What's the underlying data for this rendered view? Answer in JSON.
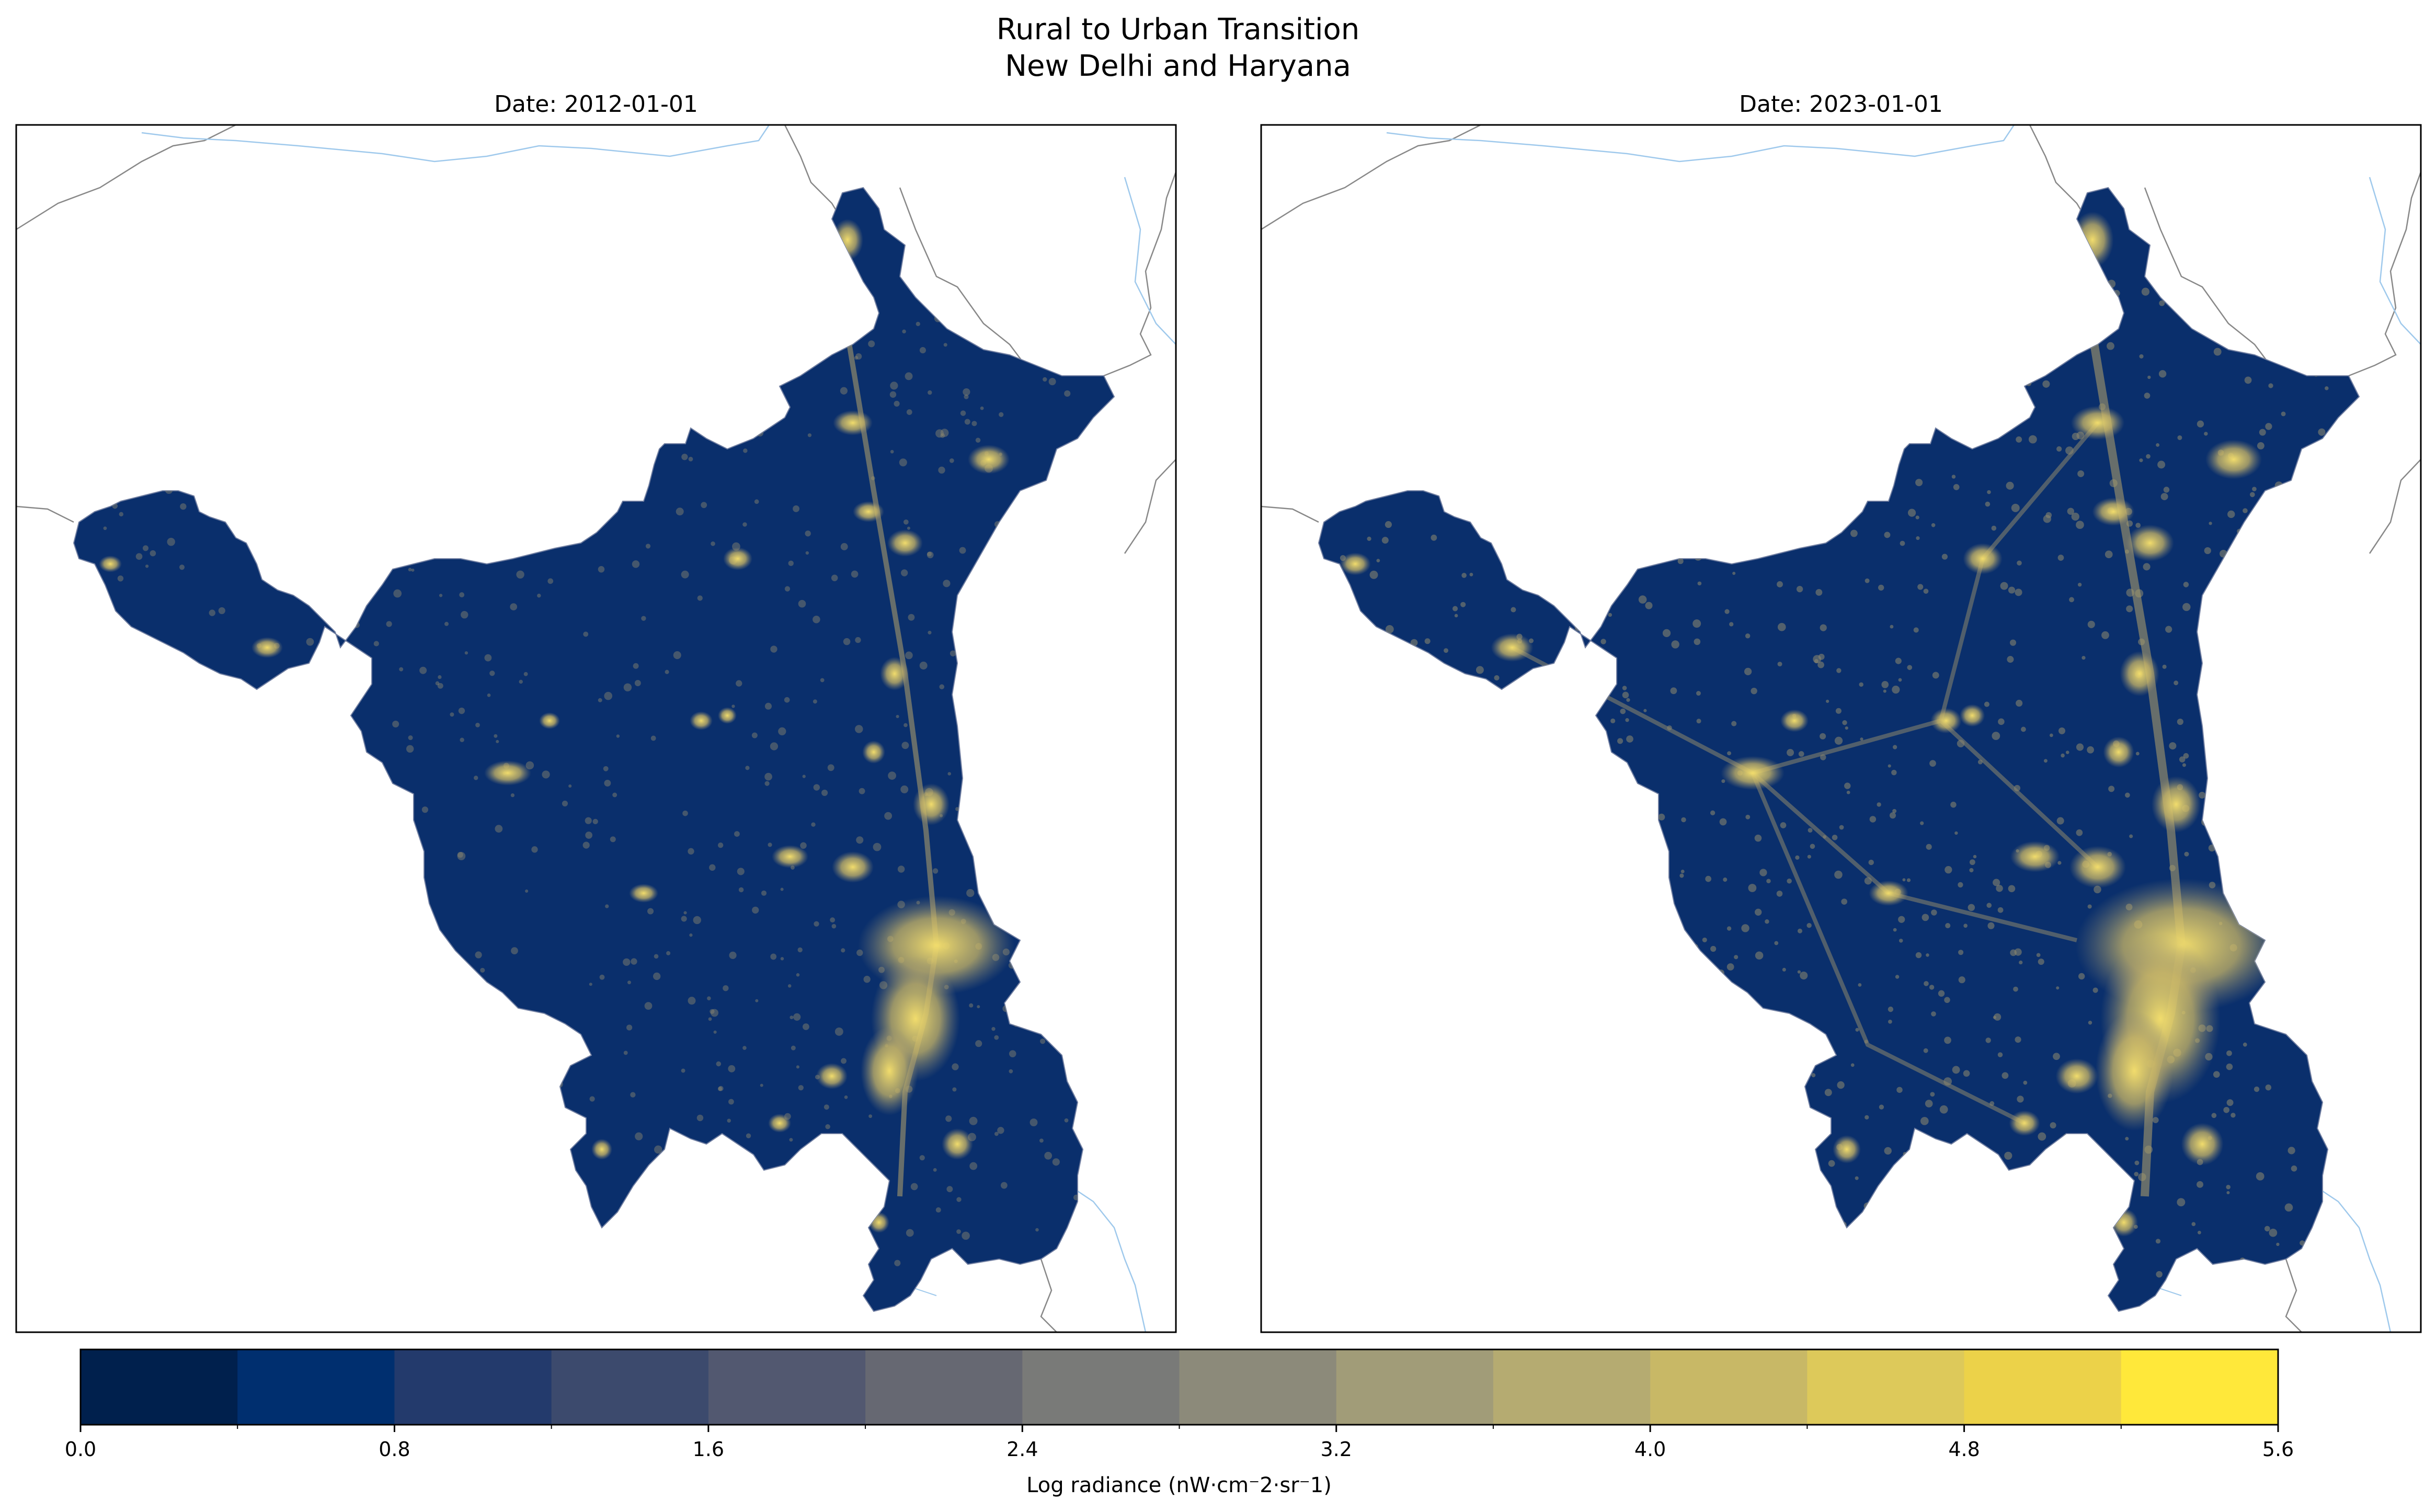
{
  "figure": {
    "title_line1": "Rural to Urban Transition",
    "title_line2": "New Delhi and Haryana"
  },
  "panels": [
    {
      "title": "Date: 2012-01-01"
    },
    {
      "title": "Date: 2023-01-01"
    }
  ],
  "colorbar": {
    "label": "Log radiance (nW·cm⁻2·sr⁻1)",
    "tick_labels": [
      "0.0",
      "0.8",
      "1.6",
      "2.4",
      "3.2",
      "4.0",
      "4.8",
      "5.6"
    ],
    "range": [
      0.0,
      5.6
    ],
    "bin_width": 0.4,
    "colors": [
      "#00204d",
      "#002f6f",
      "#233a6c",
      "#3c4a6d",
      "#525870",
      "#666872",
      "#797a78",
      "#8c8a7a",
      "#a19c78",
      "#b5ab71",
      "#c8b866",
      "#ddc95a",
      "#ecd249",
      "#ffe83a"
    ],
    "colormap": "cividis"
  },
  "map": {
    "land_color": "#0a2f6c",
    "border_color": "#888888",
    "river_color": "#9fc9ec",
    "glow_color": "#d8c66a"
  }
}
